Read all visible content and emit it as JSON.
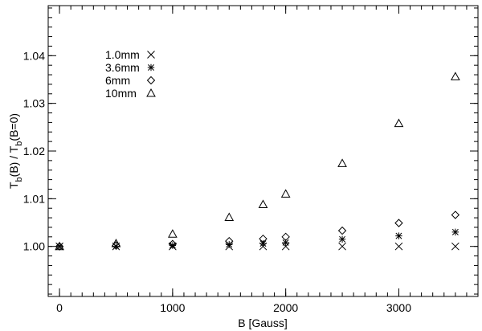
{
  "chart_data": {
    "type": "scatter",
    "xlabel": "B [Gauss]",
    "ylabel": {
      "parts": [
        {
          "text": "T",
          "sub": false
        },
        {
          "text": "b",
          "sub": true
        },
        {
          "text": "(B) / T",
          "sub": false
        },
        {
          "text": "b",
          "sub": true
        },
        {
          "text": "(B=0)",
          "sub": false
        }
      ]
    },
    "xlim": [
      -100,
      3700
    ],
    "ylim": [
      0.9895,
      1.0505
    ],
    "xticks": [
      0,
      1000,
      2000,
      3000
    ],
    "xtick_labels": [
      "0",
      "1000",
      "2000",
      "3000"
    ],
    "yticks": [
      1.0,
      1.01,
      1.02,
      1.03,
      1.04
    ],
    "ytick_labels": [
      "1.00",
      "1.01",
      "1.02",
      "1.03",
      "1.04"
    ],
    "x_minor_step": 100,
    "y_minor_step": 0.002,
    "grid": false,
    "legend_position": "upper-left",
    "series": [
      {
        "name": "1.0mm",
        "marker": "cross",
        "x": [
          0,
          500,
          1000,
          1500,
          1800,
          2000,
          2500,
          3000,
          3500
        ],
        "y": [
          1.0,
          1.0,
          1.0,
          1.0,
          1.0,
          1.0,
          1.0,
          1.0,
          1.0
        ]
      },
      {
        "name": "3.6mm",
        "marker": "asterisk",
        "x": [
          0,
          500,
          1000,
          1500,
          1800,
          2000,
          2500,
          3000,
          3500
        ],
        "y": [
          1.0,
          1.0,
          1.0002,
          1.0004,
          1.0006,
          1.0008,
          1.0015,
          1.0022,
          1.003
        ]
      },
      {
        "name": "6mm",
        "marker": "diamond",
        "x": [
          0,
          500,
          1000,
          1500,
          1800,
          2000,
          2500,
          3000,
          3500
        ],
        "y": [
          1.0,
          1.0002,
          1.0005,
          1.0011,
          1.0016,
          1.002,
          1.0033,
          1.0049,
          1.0066
        ]
      },
      {
        "name": "10mm",
        "marker": "triangle",
        "x": [
          0,
          500,
          1000,
          1500,
          1800,
          2000,
          2500,
          3000,
          3500
        ],
        "y": [
          1.0,
          1.0006,
          1.0026,
          1.0061,
          1.0088,
          1.011,
          1.0174,
          1.0258,
          1.0356
        ]
      }
    ]
  }
}
